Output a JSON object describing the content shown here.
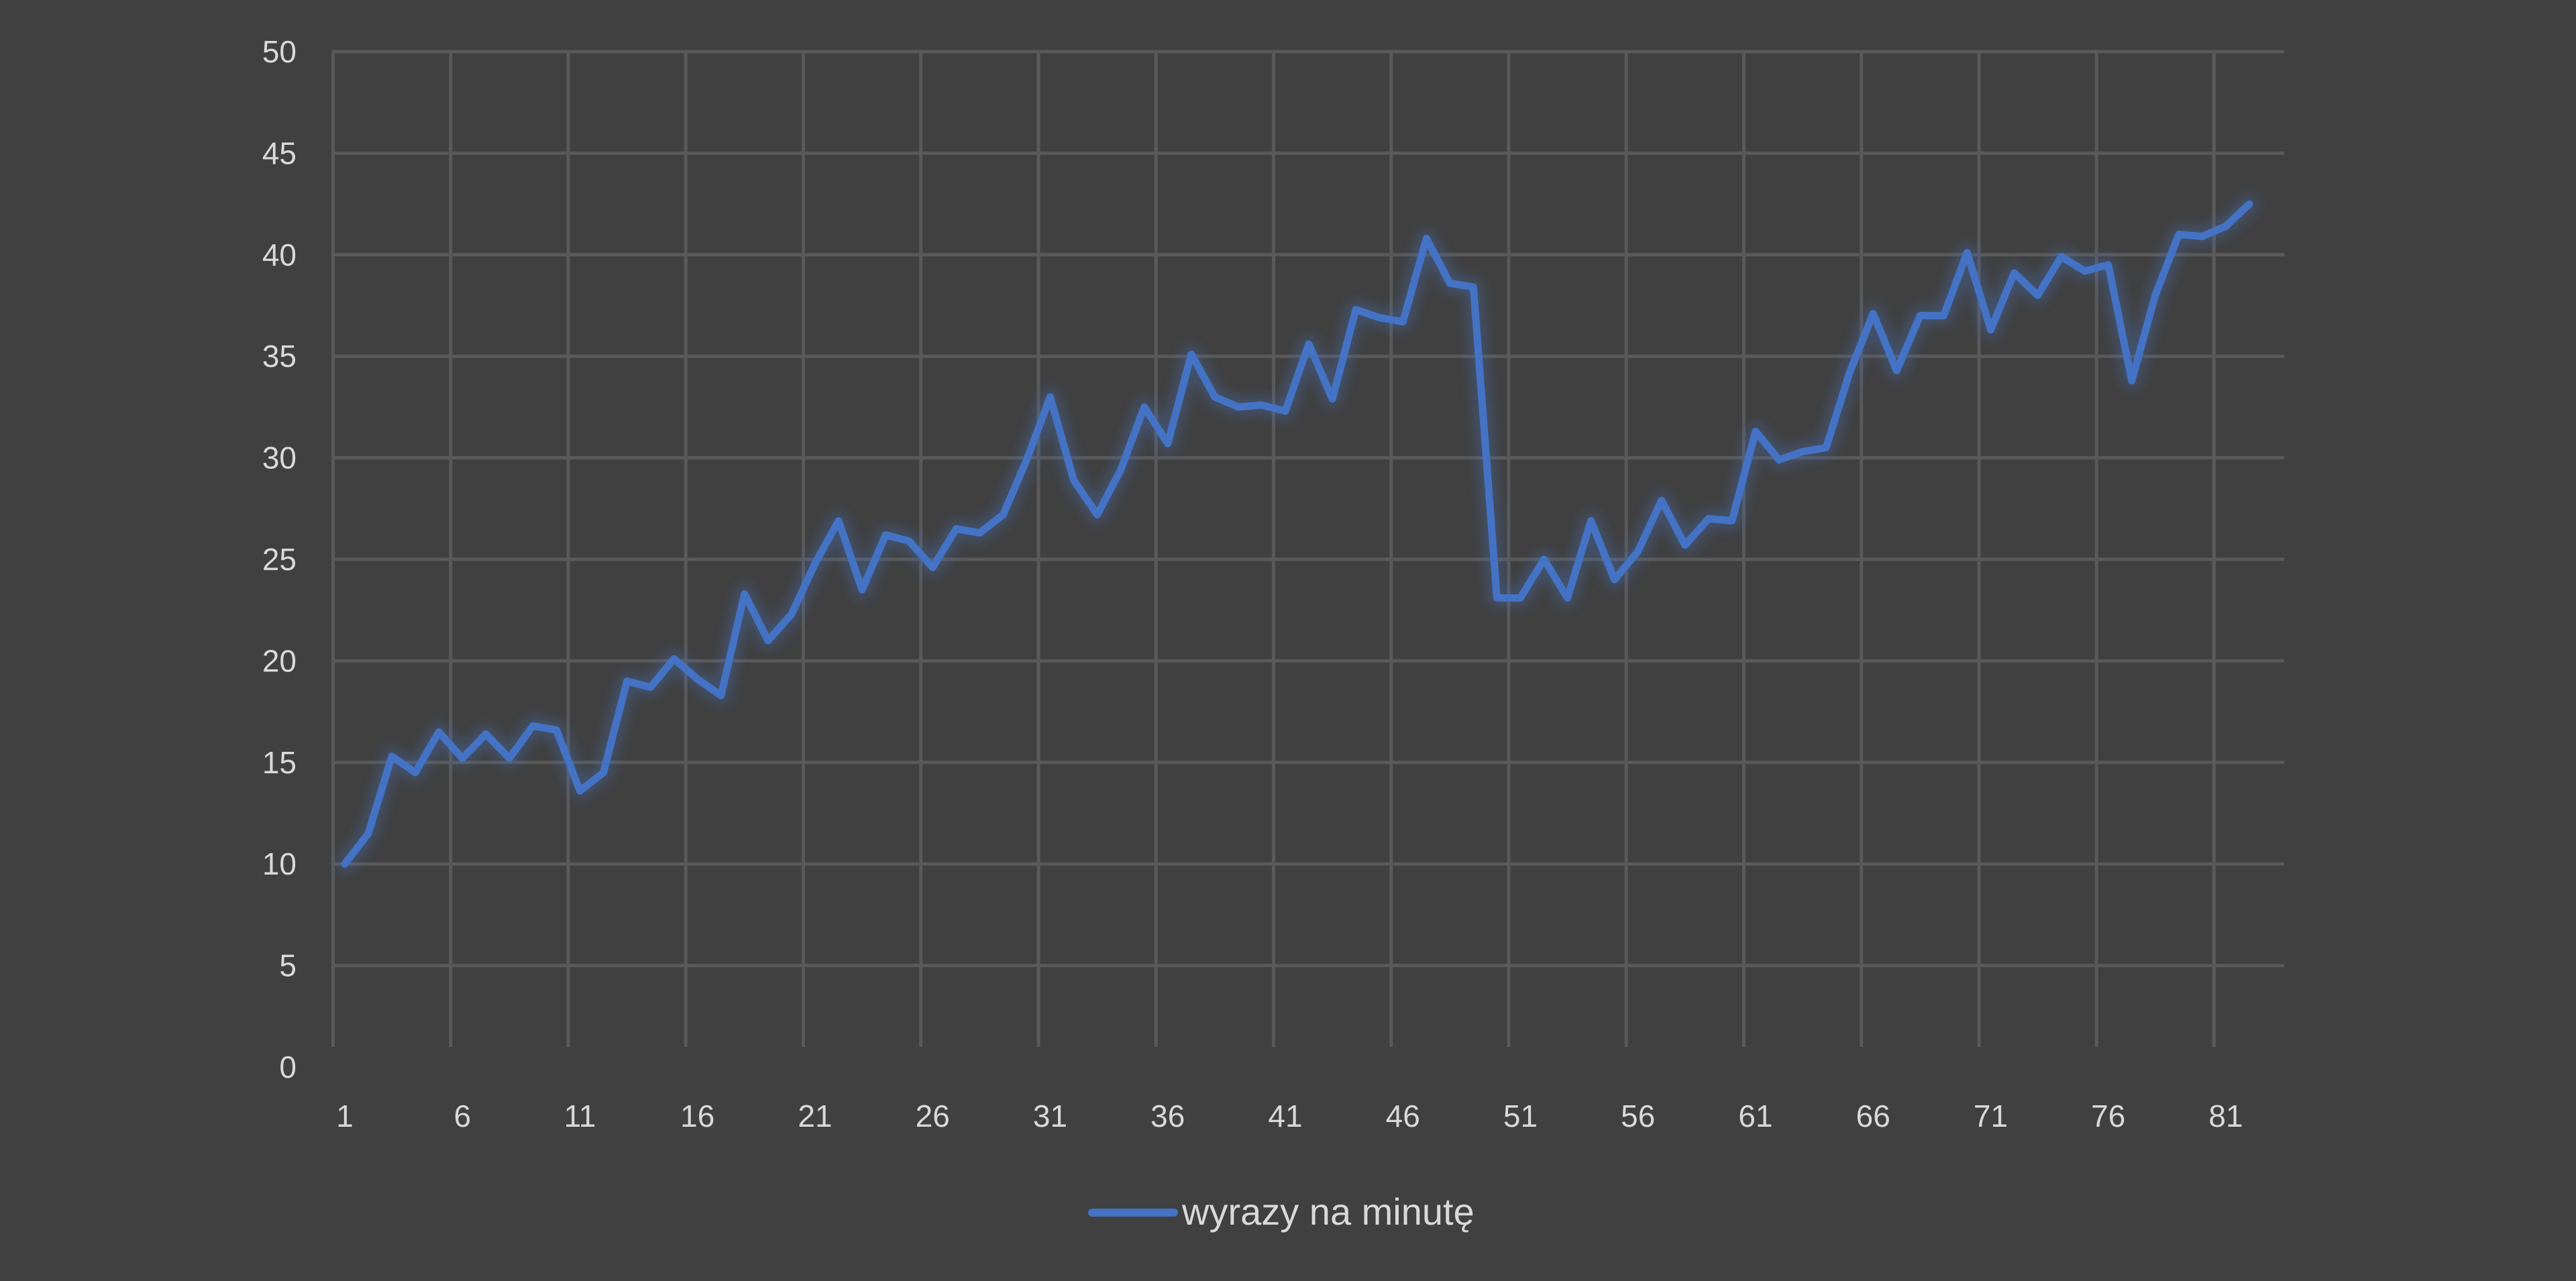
{
  "chart_data": {
    "type": "line",
    "title": "",
    "xlabel": "",
    "ylabel": "",
    "ylim": [
      0,
      50
    ],
    "y_ticks": [
      0,
      5,
      10,
      15,
      20,
      25,
      30,
      35,
      40,
      45,
      50
    ],
    "x_tick_labels": [
      1,
      6,
      11,
      16,
      21,
      26,
      31,
      36,
      41,
      46,
      51,
      56,
      61,
      66,
      71,
      76,
      81
    ],
    "x_range": [
      1,
      83
    ],
    "grid": true,
    "legend_position": "bottom",
    "colors": {
      "background": "#404040",
      "gridline": "#595959",
      "series": "#4472c4",
      "text": "#d9d9d9"
    },
    "series": [
      {
        "name": "wyrazy na minutę",
        "x": [
          1,
          2,
          3,
          4,
          5,
          6,
          7,
          8,
          9,
          10,
          11,
          12,
          13,
          14,
          15,
          16,
          17,
          18,
          19,
          20,
          21,
          22,
          23,
          24,
          25,
          26,
          27,
          28,
          29,
          30,
          31,
          32,
          33,
          34,
          35,
          36,
          37,
          38,
          39,
          40,
          41,
          42,
          43,
          44,
          45,
          46,
          47,
          48,
          49,
          50,
          51,
          52,
          53,
          54,
          55,
          56,
          57,
          58,
          59,
          60,
          61,
          62,
          63,
          64,
          65,
          66,
          67,
          68,
          69,
          70,
          71,
          72,
          73,
          74,
          75,
          76,
          77,
          78,
          79,
          80,
          81,
          82
        ],
        "values": [
          10,
          11.5,
          15.3,
          14.5,
          16.5,
          15.2,
          16.4,
          15.2,
          16.8,
          16.6,
          13.6,
          14.5,
          19,
          18.7,
          20.1,
          19.1,
          18.3,
          23.3,
          21,
          22.3,
          24.8,
          26.9,
          23.5,
          26.2,
          25.9,
          24.6,
          26.5,
          26.3,
          27.2,
          29.9,
          33,
          28.9,
          27.2,
          29.4,
          32.5,
          30.7,
          35.1,
          33,
          32.5,
          32.6,
          32.3,
          35.6,
          32.9,
          37.3,
          36.9,
          36.7,
          40.8,
          38.6,
          38.4,
          23.1,
          23.1,
          25,
          23.1,
          26.9,
          24,
          25.4,
          27.9,
          25.7,
          27,
          26.9,
          31.3,
          29.9,
          30.3,
          30.5,
          34.2,
          37.1,
          34.3,
          37,
          37,
          40.1,
          36.3,
          39.1,
          38,
          39.9,
          39.2,
          39.5,
          33.8,
          38,
          41,
          40.9,
          41.4,
          42.5
        ]
      }
    ]
  }
}
